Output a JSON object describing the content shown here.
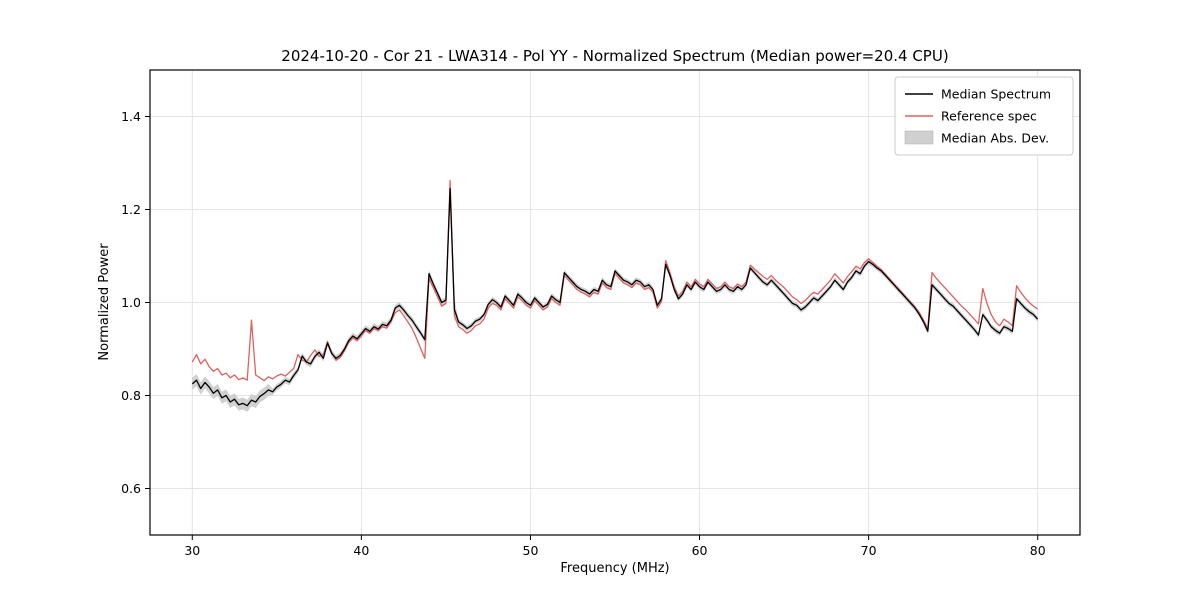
{
  "chart_data": {
    "type": "line",
    "title": "2024-10-20 - Cor 21 - LWA314 - Pol YY - Normalized Spectrum (Median power=20.4 CPU)",
    "xlabel": "Frequency (MHz)",
    "ylabel": "Normalized Power",
    "xlim": [
      27.5,
      82.5
    ],
    "ylim": [
      0.5,
      1.5
    ],
    "xticks": [
      30,
      40,
      50,
      60,
      70,
      80
    ],
    "yticks": [
      0.6,
      0.8,
      1.0,
      1.2,
      1.4
    ],
    "grid": true,
    "legend_position": "upper right",
    "x_start": 30,
    "x_step": 0.25,
    "series": [
      {
        "name": "Median Spectrum",
        "color": "#000000",
        "values": [
          0.825,
          0.833,
          0.815,
          0.828,
          0.818,
          0.805,
          0.812,
          0.795,
          0.8,
          0.786,
          0.792,
          0.78,
          0.783,
          0.778,
          0.79,
          0.786,
          0.798,
          0.804,
          0.812,
          0.808,
          0.818,
          0.824,
          0.833,
          0.829,
          0.843,
          0.855,
          0.885,
          0.872,
          0.868,
          0.884,
          0.893,
          0.88,
          0.913,
          0.89,
          0.88,
          0.886,
          0.9,
          0.918,
          0.928,
          0.922,
          0.933,
          0.944,
          0.938,
          0.948,
          0.943,
          0.953,
          0.95,
          0.962,
          0.988,
          0.994,
          0.984,
          0.972,
          0.962,
          0.948,
          0.935,
          0.92,
          1.062,
          1.04,
          1.02,
          1.0,
          1.005,
          1.245,
          0.985,
          0.958,
          0.952,
          0.944,
          0.95,
          0.96,
          0.964,
          0.974,
          0.996,
          1.006,
          1.0,
          0.99,
          1.014,
          1.004,
          0.994,
          1.018,
          1.01,
          1.0,
          0.994,
          1.01,
          1.0,
          0.99,
          0.996,
          1.014,
          1.006,
          1.0,
          1.064,
          1.054,
          1.044,
          1.034,
          1.028,
          1.024,
          1.018,
          1.028,
          1.024,
          1.048,
          1.038,
          1.034,
          1.068,
          1.058,
          1.048,
          1.044,
          1.038,
          1.048,
          1.044,
          1.034,
          1.038,
          1.028,
          0.994,
          1.008,
          1.082,
          1.058,
          1.028,
          1.008,
          1.018,
          1.038,
          1.028,
          1.044,
          1.034,
          1.028,
          1.044,
          1.034,
          1.024,
          1.028,
          1.038,
          1.028,
          1.024,
          1.034,
          1.028,
          1.038,
          1.074,
          1.064,
          1.054,
          1.044,
          1.038,
          1.048,
          1.038,
          1.028,
          1.018,
          1.008,
          0.998,
          0.994,
          0.984,
          0.99,
          1.0,
          1.01,
          1.004,
          1.014,
          1.024,
          1.034,
          1.048,
          1.038,
          1.028,
          1.044,
          1.054,
          1.068,
          1.062,
          1.078,
          1.088,
          1.082,
          1.074,
          1.068,
          1.058,
          1.048,
          1.038,
          1.028,
          1.018,
          1.008,
          0.998,
          0.988,
          0.974,
          0.958,
          0.938,
          1.038,
          1.028,
          1.018,
          1.008,
          0.998,
          0.992,
          0.982,
          0.972,
          0.962,
          0.952,
          0.942,
          0.93,
          0.974,
          0.962,
          0.948,
          0.94,
          0.934,
          0.948,
          0.944,
          0.938,
          1.008,
          0.998,
          0.988,
          0.98,
          0.974,
          0.964
        ]
      },
      {
        "name": "Reference spec",
        "color": "#e06060",
        "values": [
          0.872,
          0.888,
          0.868,
          0.878,
          0.862,
          0.852,
          0.858,
          0.844,
          0.848,
          0.838,
          0.844,
          0.834,
          0.838,
          0.833,
          0.962,
          0.844,
          0.838,
          0.832,
          0.84,
          0.836,
          0.842,
          0.846,
          0.842,
          0.85,
          0.858,
          0.888,
          0.876,
          0.872,
          0.886,
          0.898,
          0.884,
          0.888,
          0.916,
          0.892,
          0.876,
          0.882,
          0.896,
          0.914,
          0.924,
          0.918,
          0.928,
          0.94,
          0.934,
          0.944,
          0.94,
          0.948,
          0.945,
          0.958,
          0.978,
          0.984,
          0.972,
          0.958,
          0.944,
          0.924,
          0.902,
          0.88,
          1.052,
          1.032,
          1.012,
          0.992,
          0.998,
          1.262,
          0.972,
          0.948,
          0.942,
          0.934,
          0.94,
          0.95,
          0.954,
          0.964,
          0.988,
          0.998,
          0.994,
          0.984,
          1.008,
          0.998,
          0.988,
          1.012,
          1.004,
          0.994,
          0.988,
          1.004,
          0.994,
          0.984,
          0.99,
          1.008,
          1.0,
          0.994,
          1.058,
          1.048,
          1.038,
          1.028,
          1.022,
          1.018,
          1.012,
          1.022,
          1.018,
          1.042,
          1.032,
          1.028,
          1.062,
          1.052,
          1.042,
          1.038,
          1.032,
          1.042,
          1.038,
          1.028,
          1.032,
          1.022,
          0.988,
          1.002,
          1.09,
          1.064,
          1.034,
          1.014,
          1.024,
          1.044,
          1.034,
          1.05,
          1.04,
          1.034,
          1.05,
          1.04,
          1.03,
          1.034,
          1.044,
          1.034,
          1.03,
          1.04,
          1.034,
          1.044,
          1.08,
          1.072,
          1.064,
          1.056,
          1.05,
          1.058,
          1.048,
          1.04,
          1.032,
          1.022,
          1.012,
          1.006,
          0.998,
          1.004,
          1.014,
          1.022,
          1.018,
          1.028,
          1.038,
          1.048,
          1.062,
          1.052,
          1.042,
          1.056,
          1.066,
          1.078,
          1.072,
          1.086,
          1.094,
          1.086,
          1.078,
          1.07,
          1.06,
          1.05,
          1.04,
          1.03,
          1.02,
          1.01,
          1.0,
          0.99,
          0.978,
          0.962,
          0.944,
          1.064,
          1.052,
          1.042,
          1.032,
          1.022,
          1.012,
          1.002,
          0.992,
          0.984,
          0.974,
          0.964,
          0.954,
          1.03,
          0.998,
          0.974,
          0.958,
          0.95,
          0.964,
          0.958,
          0.95,
          1.036,
          1.022,
          1.01,
          1.0,
          0.992,
          0.986
        ]
      }
    ],
    "mad_band": {
      "name": "Median Abs. Dev.",
      "color": "#c8c8c8",
      "base_series": "Median Spectrum",
      "regions": [
        {
          "from": 30.0,
          "to": 34.5,
          "halfwidth": 0.013
        },
        {
          "from": 34.5,
          "to": 45.0,
          "halfwidth": 0.007
        },
        {
          "from": 45.0,
          "to": 45.6,
          "halfwidth": 0.022
        },
        {
          "from": 45.6,
          "to": 80.0,
          "halfwidth": 0.006
        }
      ]
    },
    "legend": [
      {
        "label": "Median Spectrum",
        "type": "line",
        "color": "#000000"
      },
      {
        "label": "Reference spec",
        "type": "line",
        "color": "#e06060"
      },
      {
        "label": "Median Abs. Dev.",
        "type": "patch",
        "color": "#c8c8c8"
      }
    ]
  }
}
